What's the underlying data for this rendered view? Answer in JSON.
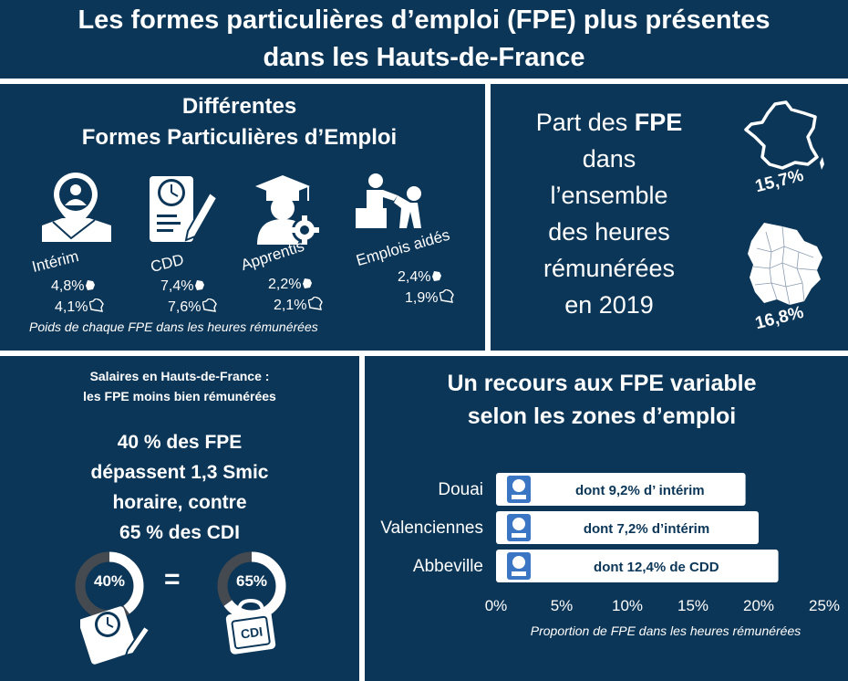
{
  "header": {
    "title_line1": "Les formes particulières d’emploi (FPE) plus présentes",
    "title_line2": "dans les Hauts-de-France"
  },
  "types": {
    "heading_line1": "Différentes",
    "heading_line2": "Formes Particulières d’Emploi",
    "items": [
      {
        "label": "Intérim",
        "region": "4,8%",
        "france": "4,1%",
        "icon": "temp-worker-map-pin-icon"
      },
      {
        "label": "CDD",
        "region": "7,4%",
        "france": "7,6%",
        "icon": "contract-clock-icon"
      },
      {
        "label": "Apprentis",
        "region": "2,2%",
        "france": "2,1%",
        "icon": "graduate-gear-icon"
      },
      {
        "label": "Emplois aidés",
        "region": "2,4%",
        "france": "1,9%",
        "icon": "helping-hand-icon"
      }
    ],
    "note": "Poids de chaque FPE dans les heures rémunérées"
  },
  "share": {
    "line1": "Part des ",
    "line1_bold": "FPE",
    "line2": "dans",
    "line3": "l’ensemble",
    "line4": "des heures",
    "line5": "rémunérées",
    "line6": "en 2019",
    "france_value": "15,7%",
    "region_value": "16,8%"
  },
  "wages": {
    "sub_line1": "Salaires en Hauts-de-France :",
    "sub_line2": "les FPE moins bien rémunérées",
    "big_line1": "40 % des FPE",
    "big_line2": "dépassent 1,3 Smic",
    "big_line3": "horaire, contre",
    "big_line4": "65 % des CDI",
    "fpe_donut_label": "40%",
    "fpe_donut_value": 0.4,
    "cdi_donut_label": "65%",
    "cdi_donut_value": 0.65,
    "equals": "=",
    "cdi_tag": "CDI"
  },
  "zones": {
    "heading_line1": "Un recours aux FPE variable",
    "heading_line2": "selon les zones d’emploi"
  },
  "chart_data": {
    "type": "bar",
    "orientation": "horizontal",
    "categories": [
      "Douai",
      "Valenciennes",
      "Abbeville"
    ],
    "values": [
      19,
      20,
      21.5
    ],
    "bar_labels": [
      "dont 9,2% d’ intérim",
      "dont 7,2% d’intérim",
      "dont 12,4% de CDD"
    ],
    "bar_icons": [
      "temp-worker-icon",
      "temp-worker-icon",
      "contract-icon"
    ],
    "xlim": [
      0,
      25
    ],
    "ticks": [
      "0%",
      "5%",
      "10%",
      "15%",
      "20%",
      "25%"
    ],
    "tick_values": [
      0,
      5,
      10,
      15,
      20,
      25
    ],
    "xlabel": "Proportion de FPE dans les heures rémunérées",
    "bar_color": "#ffffff",
    "label_color": "#0c3657"
  },
  "colors": {
    "background": "#0c3657",
    "text": "#ffffff",
    "donut_track": "#444a50"
  }
}
